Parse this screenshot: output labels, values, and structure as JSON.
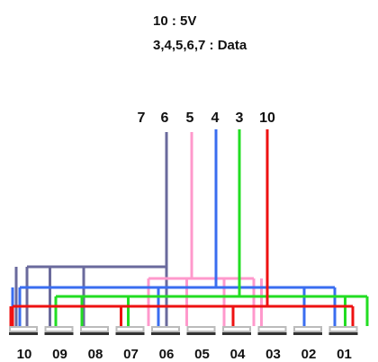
{
  "legend": {
    "line1": "10 : 5V",
    "line2": "3,4,5,6,7 : Data"
  },
  "wire_labels": [
    {
      "id": "7",
      "text": "7"
    },
    {
      "id": "6",
      "text": "6"
    },
    {
      "id": "5",
      "text": "5"
    },
    {
      "id": "4",
      "text": "4"
    },
    {
      "id": "3",
      "text": "3"
    },
    {
      "id": "10",
      "text": "10"
    }
  ],
  "connectors": [
    "10",
    "09",
    "08",
    "07",
    "06",
    "05",
    "04",
    "03",
    "02",
    "01"
  ],
  "wires": [
    {
      "line": "6",
      "color": "#6a6a9c",
      "drops": [
        0,
        1,
        2
      ]
    },
    {
      "line": "5",
      "color": "#ff99cc",
      "drops": [
        5,
        6,
        7
      ]
    },
    {
      "line": "4",
      "color": "#3a6df0",
      "drops": [
        0,
        4,
        8
      ]
    },
    {
      "line": "3",
      "color": "#22dd22",
      "drops": [
        2,
        3,
        9
      ]
    },
    {
      "line": "10",
      "color": "#ee1111",
      "drops": [
        0,
        3,
        6
      ]
    }
  ],
  "colors": {
    "text": "#111111",
    "connector": "#333333",
    "connector_highlight": "#bbbbbb"
  }
}
